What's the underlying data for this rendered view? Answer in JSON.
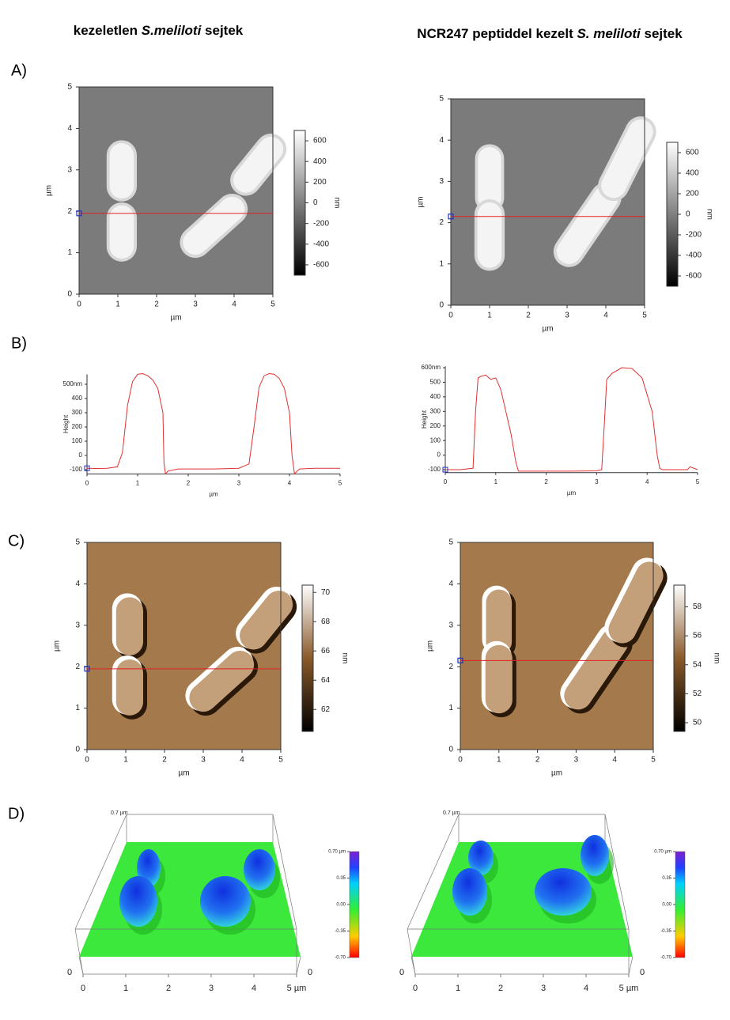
{
  "titles": {
    "left": [
      "kezeletlen ",
      "S.meliloti",
      " sejtek"
    ],
    "right": [
      "NCR247 peptiddel kezelt ",
      "S. meliloti",
      " sejtek"
    ]
  },
  "A": {
    "label": "A)",
    "left": {
      "xlim": [
        0,
        5
      ],
      "ylim": [
        0,
        5
      ],
      "xticks": [
        0,
        1,
        2,
        3,
        4,
        5
      ],
      "yticks": [
        0,
        1,
        2,
        3,
        4,
        5
      ],
      "xlabel": "µm",
      "ylabel": "µm",
      "marker_y": 1.95,
      "colorbar": {
        "label": "nm",
        "lim": [
          -700,
          700
        ],
        "ticks": [
          600,
          400,
          200,
          0,
          -200,
          -400,
          -600
        ]
      }
    },
    "right": {
      "xlim": [
        0,
        5
      ],
      "ylim": [
        0,
        5
      ],
      "xticks": [
        0,
        1,
        2,
        3,
        4,
        5
      ],
      "yticks": [
        0,
        1,
        2,
        3,
        4,
        5
      ],
      "xlabel": "µm",
      "ylabel": "µm",
      "marker_y": 2.15,
      "colorbar": {
        "label": "nm",
        "lim": [
          -700,
          700
        ],
        "ticks": [
          600,
          400,
          200,
          0,
          -200,
          -400,
          -600
        ]
      }
    }
  },
  "B": {
    "label": "B)",
    "left": {
      "xlim": [
        0,
        5
      ],
      "ylim": [
        -130,
        570
      ],
      "xticks": [
        0,
        1,
        2,
        3,
        4,
        5
      ],
      "xlabel": "µm",
      "ylabel": "Height",
      "yticks": [
        {
          "value": 500,
          "label": "500nm"
        },
        400,
        300,
        200,
        100,
        0,
        -100
      ],
      "x": [
        0,
        0.2,
        0.4,
        0.6,
        0.7,
        0.8,
        0.9,
        1.0,
        1.1,
        1.2,
        1.3,
        1.4,
        1.5,
        1.52,
        1.55,
        1.6,
        1.8,
        2.0,
        2.5,
        3.0,
        3.2,
        3.3,
        3.4,
        3.5,
        3.6,
        3.7,
        3.8,
        3.9,
        4.0,
        4.05,
        4.1,
        4.15,
        4.2,
        4.5,
        5.0
      ],
      "y": [
        -90,
        -92,
        -90,
        -80,
        20,
        350,
        520,
        570,
        575,
        560,
        530,
        470,
        300,
        -50,
        -130,
        -110,
        -95,
        -95,
        -95,
        -90,
        -60,
        200,
        480,
        560,
        575,
        570,
        540,
        470,
        300,
        0,
        -130,
        -110,
        -95,
        -90,
        -90
      ]
    },
    "right": {
      "xlim": [
        0,
        5
      ],
      "ylim": [
        -120,
        610
      ],
      "xticks": [
        0,
        1,
        2,
        3,
        4,
        5
      ],
      "xlabel": "µm",
      "ylabel": "Height",
      "yticks": [
        {
          "value": 600,
          "label": "600nm"
        },
        500,
        400,
        300,
        200,
        100,
        0,
        -100
      ],
      "x": [
        0,
        0.3,
        0.55,
        0.6,
        0.65,
        0.7,
        0.8,
        0.9,
        1.0,
        1.1,
        1.2,
        1.3,
        1.4,
        1.45,
        1.6,
        2.0,
        2.5,
        3.0,
        3.1,
        3.15,
        3.2,
        3.3,
        3.5,
        3.7,
        3.9,
        4.1,
        4.2,
        4.25,
        4.3,
        4.5,
        4.8,
        4.85,
        5.0
      ],
      "y": [
        -100,
        -100,
        -90,
        300,
        530,
        540,
        550,
        520,
        530,
        450,
        300,
        150,
        -50,
        -110,
        -110,
        -110,
        -110,
        -108,
        -100,
        200,
        520,
        560,
        600,
        595,
        530,
        300,
        0,
        -90,
        -100,
        -100,
        -100,
        -80,
        -100
      ]
    }
  },
  "C": {
    "label": "C)",
    "left": {
      "xlim": [
        0,
        5
      ],
      "ylim": [
        0,
        5
      ],
      "xticks": [
        0,
        1,
        2,
        3,
        4,
        5
      ],
      "yticks": [
        0,
        1,
        2,
        3,
        4,
        5
      ],
      "xlabel": "µm",
      "ylabel": "µm",
      "marker_y": 1.95,
      "colorbar": {
        "label": "nm",
        "lim": [
          60.5,
          70.5
        ],
        "ticks": [
          70,
          68,
          66,
          64,
          62
        ]
      }
    },
    "right": {
      "xlim": [
        0,
        5
      ],
      "ylim": [
        0,
        5
      ],
      "xticks": [
        0,
        1,
        2,
        3,
        4,
        5
      ],
      "yticks": [
        0,
        1,
        2,
        3,
        4,
        5
      ],
      "xlabel": "µm",
      "ylabel": "µm",
      "marker_y": 2.15,
      "colorbar": {
        "label": "nm",
        "lim": [
          49.4,
          59.5
        ],
        "ticks": [
          58,
          56,
          54,
          52,
          50
        ]
      }
    }
  },
  "D": {
    "label": "D)",
    "left": {
      "z_label": "0.7 µm",
      "xticks": [
        0,
        1,
        2,
        3,
        4,
        {
          "value": 5,
          "label": "5 µm"
        }
      ],
      "corner_left": "0",
      "corner_right": "0",
      "colorbar": {
        "lim": [
          -0.7,
          0.7
        ],
        "ticks": [
          {
            "value": 0.7,
            "label": "0.70 µm"
          },
          {
            "value": 0.35,
            "label": "0.35"
          },
          {
            "value": 0,
            "label": "0.00"
          },
          {
            "value": -0.35,
            "label": "-0.35"
          },
          {
            "value": -0.7,
            "label": "-0.70"
          }
        ]
      }
    },
    "right": {
      "z_label": "0.7 µm",
      "xticks": [
        0,
        1,
        2,
        3,
        4,
        {
          "value": 5,
          "label": "5 µm"
        }
      ],
      "corner_left": "0",
      "corner_right": "0",
      "colorbar": {
        "lim": [
          -0.7,
          0.7
        ],
        "ticks": [
          {
            "value": 0.7,
            "label": "0.70 µm"
          },
          {
            "value": 0.35,
            "label": "0.35"
          },
          {
            "value": 0,
            "label": "0.00"
          },
          {
            "value": -0.35,
            "label": "-0.35"
          },
          {
            "value": -0.7,
            "label": "-0.70"
          }
        ]
      }
    }
  }
}
